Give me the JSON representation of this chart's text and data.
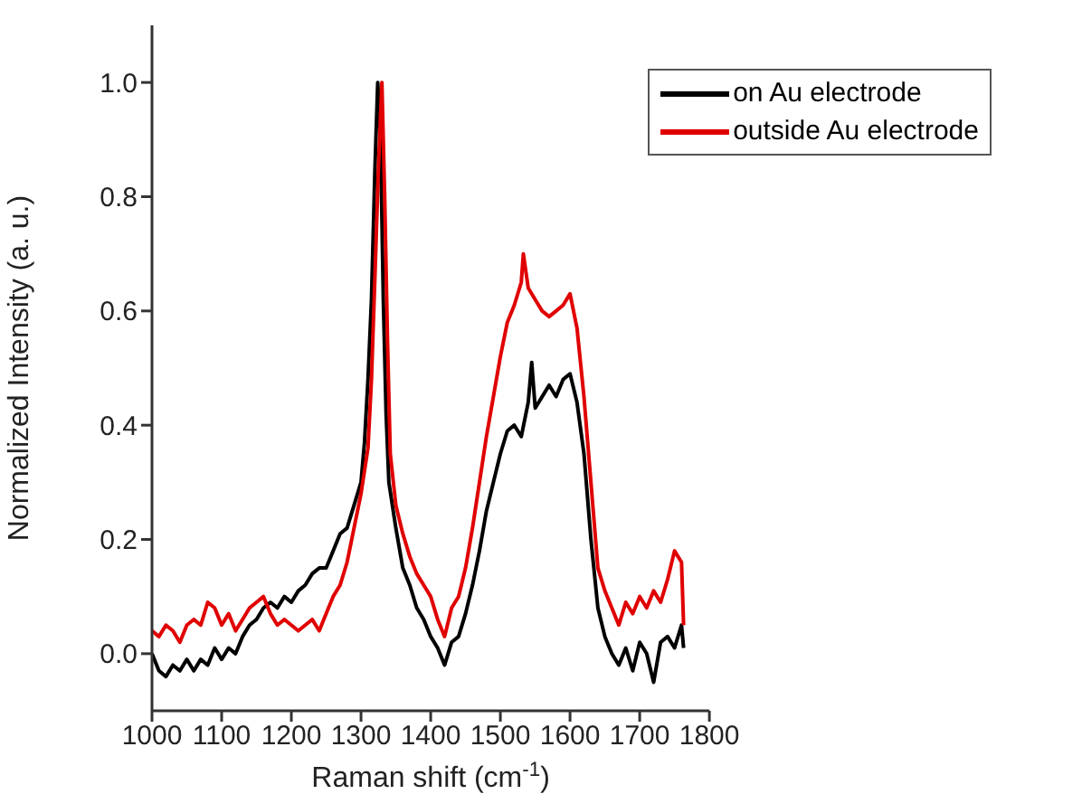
{
  "chart_data": {
    "type": "line",
    "xlabel": "Raman shift (cm$^{-1}$)",
    "ylabel": "Normalized Intensity (a. u.)",
    "xlim": [
      1000,
      1800
    ],
    "xticks": [
      1000,
      1100,
      1200,
      1300,
      1400,
      1500,
      1600,
      1700,
      1800
    ],
    "ylim": [
      -0.1,
      1.1
    ],
    "yticks": [
      {
        "value": 0,
        "label": "0.0"
      },
      0.2,
      0.4,
      0.6,
      0.8,
      {
        "value": 1,
        "label": "1.0"
      }
    ],
    "legend": "top right",
    "grid": false,
    "series": [
      {
        "name": "on Au electrode",
        "color": "#000000",
        "x": [
          1000,
          1010,
          1020,
          1030,
          1040,
          1050,
          1060,
          1070,
          1080,
          1090,
          1100,
          1110,
          1120,
          1130,
          1140,
          1150,
          1160,
          1170,
          1180,
          1190,
          1200,
          1210,
          1220,
          1230,
          1240,
          1250,
          1260,
          1270,
          1280,
          1290,
          1300,
          1305,
          1310,
          1315,
          1320,
          1324,
          1328,
          1332,
          1336,
          1340,
          1350,
          1360,
          1370,
          1380,
          1390,
          1400,
          1410,
          1420,
          1430,
          1440,
          1450,
          1460,
          1470,
          1480,
          1490,
          1500,
          1510,
          1520,
          1530,
          1540,
          1545,
          1550,
          1560,
          1570,
          1580,
          1590,
          1600,
          1610,
          1620,
          1630,
          1640,
          1650,
          1660,
          1670,
          1680,
          1690,
          1700,
          1710,
          1720,
          1730,
          1740,
          1750,
          1760,
          1763
        ],
        "values": [
          0.0,
          -0.03,
          -0.04,
          -0.02,
          -0.03,
          -0.01,
          -0.03,
          -0.01,
          -0.02,
          0.01,
          -0.01,
          0.01,
          0.0,
          0.03,
          0.05,
          0.06,
          0.08,
          0.09,
          0.08,
          0.1,
          0.09,
          0.11,
          0.12,
          0.14,
          0.15,
          0.15,
          0.18,
          0.21,
          0.22,
          0.26,
          0.3,
          0.37,
          0.48,
          0.62,
          0.85,
          1.0,
          0.9,
          0.62,
          0.42,
          0.3,
          0.22,
          0.15,
          0.12,
          0.08,
          0.06,
          0.03,
          0.01,
          -0.02,
          0.02,
          0.03,
          0.07,
          0.12,
          0.18,
          0.25,
          0.3,
          0.35,
          0.39,
          0.4,
          0.38,
          0.44,
          0.51,
          0.43,
          0.45,
          0.47,
          0.45,
          0.48,
          0.49,
          0.44,
          0.35,
          0.2,
          0.08,
          0.03,
          0.0,
          -0.02,
          0.01,
          -0.03,
          0.02,
          0.0,
          -0.05,
          0.02,
          0.03,
          0.01,
          0.05,
          0.01
        ]
      },
      {
        "name": "outside Au electrode",
        "color": "#e00000",
        "x": [
          1000,
          1010,
          1020,
          1030,
          1040,
          1050,
          1060,
          1070,
          1080,
          1090,
          1100,
          1110,
          1120,
          1130,
          1140,
          1150,
          1160,
          1170,
          1180,
          1190,
          1200,
          1210,
          1220,
          1230,
          1240,
          1250,
          1260,
          1270,
          1280,
          1290,
          1300,
          1310,
          1315,
          1320,
          1325,
          1330,
          1334,
          1338,
          1342,
          1350,
          1360,
          1370,
          1380,
          1390,
          1400,
          1410,
          1420,
          1430,
          1440,
          1450,
          1460,
          1470,
          1480,
          1490,
          1500,
          1510,
          1520,
          1530,
          1533,
          1540,
          1550,
          1560,
          1570,
          1580,
          1590,
          1600,
          1610,
          1620,
          1630,
          1640,
          1650,
          1660,
          1670,
          1680,
          1690,
          1700,
          1710,
          1720,
          1730,
          1740,
          1750,
          1760,
          1763
        ],
        "values": [
          0.04,
          0.03,
          0.05,
          0.04,
          0.02,
          0.05,
          0.06,
          0.05,
          0.09,
          0.08,
          0.05,
          0.07,
          0.04,
          0.06,
          0.08,
          0.09,
          0.1,
          0.07,
          0.05,
          0.06,
          0.05,
          0.04,
          0.05,
          0.06,
          0.04,
          0.07,
          0.1,
          0.12,
          0.16,
          0.22,
          0.28,
          0.36,
          0.48,
          0.66,
          0.85,
          1.0,
          0.8,
          0.55,
          0.35,
          0.26,
          0.21,
          0.17,
          0.14,
          0.12,
          0.1,
          0.06,
          0.03,
          0.08,
          0.1,
          0.15,
          0.22,
          0.3,
          0.38,
          0.45,
          0.52,
          0.58,
          0.61,
          0.65,
          0.7,
          0.64,
          0.62,
          0.6,
          0.59,
          0.6,
          0.61,
          0.63,
          0.57,
          0.45,
          0.3,
          0.15,
          0.11,
          0.08,
          0.05,
          0.09,
          0.07,
          0.1,
          0.08,
          0.11,
          0.09,
          0.13,
          0.18,
          0.16,
          0.05
        ]
      }
    ]
  }
}
